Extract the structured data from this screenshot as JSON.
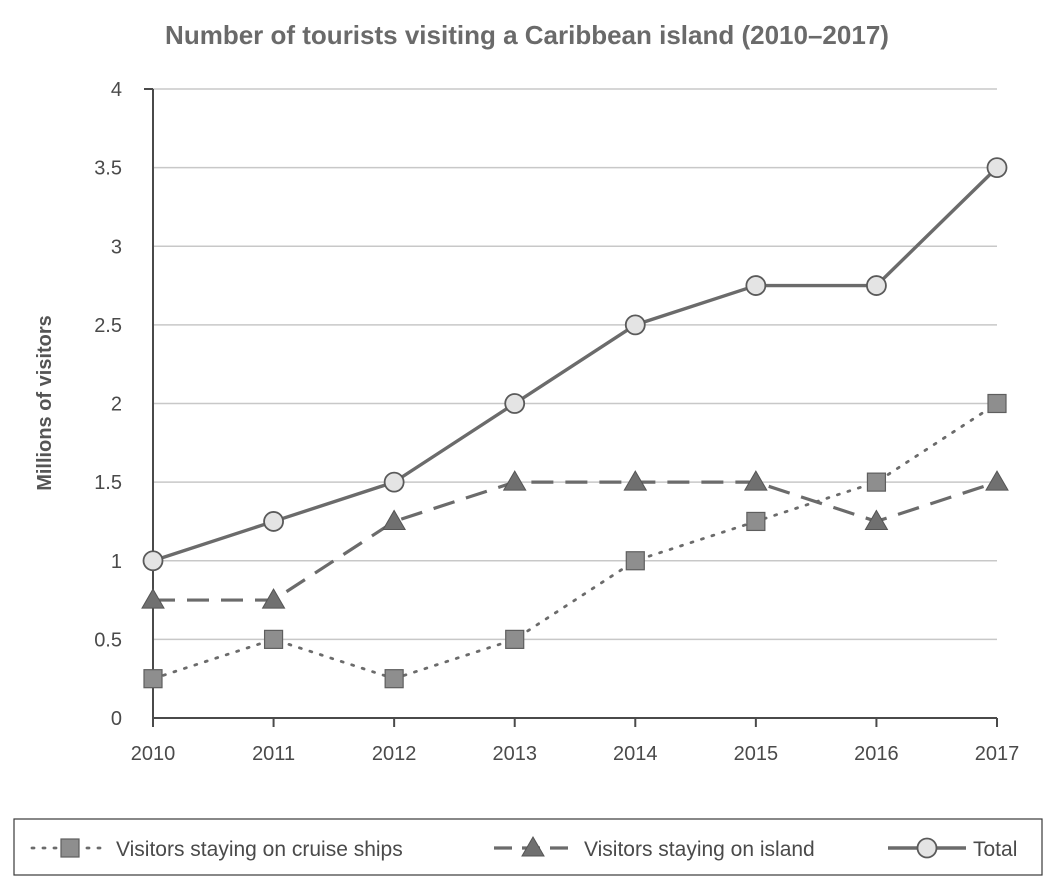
{
  "chart_data": {
    "type": "line",
    "title": "Number of tourists visiting a Caribbean island (2010–2017)",
    "xlabel": "",
    "ylabel": "Millions of visitors",
    "categories": [
      "2010",
      "2011",
      "2012",
      "2013",
      "2014",
      "2015",
      "2016",
      "2017"
    ],
    "ylim": [
      0,
      4
    ],
    "yticks": [
      "0",
      "0.5",
      "1",
      "1.5",
      "2",
      "2.5",
      "3",
      "3.5",
      "4"
    ],
    "grid": true,
    "legend_position": "bottom",
    "series": [
      {
        "name": "Visitors staying on cruise ships",
        "marker": "square",
        "line_style": "dotted",
        "values": [
          0.25,
          0.5,
          0.25,
          0.5,
          1.0,
          1.25,
          1.5,
          2.0
        ]
      },
      {
        "name": "Visitors staying on island",
        "marker": "triangle",
        "line_style": "dashed",
        "values": [
          0.75,
          0.75,
          1.25,
          1.5,
          1.5,
          1.5,
          1.25,
          1.5
        ]
      },
      {
        "name": "Total",
        "marker": "circle",
        "line_style": "solid",
        "values": [
          1.0,
          1.25,
          1.5,
          2.0,
          2.5,
          2.75,
          2.75,
          3.5
        ]
      }
    ],
    "colors": {
      "line": "#6b6b6b",
      "marker_fill": "#8e8e8e",
      "circle_fill": "#e4e4e4",
      "grid": "#c8c8c8",
      "axis": "#4a4a4a"
    }
  }
}
